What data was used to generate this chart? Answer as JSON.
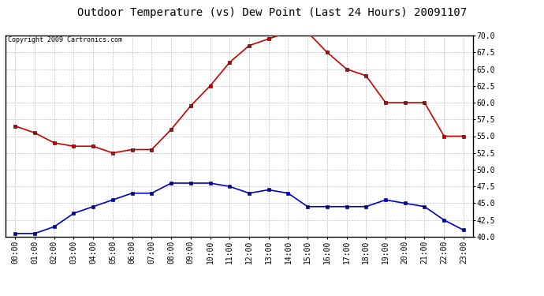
{
  "title": "Outdoor Temperature (vs) Dew Point (Last 24 Hours) 20091107",
  "copyright": "Copyright 2009 Cartronics.com",
  "hours": [
    "00:00",
    "01:00",
    "02:00",
    "03:00",
    "04:00",
    "05:00",
    "06:00",
    "07:00",
    "08:00",
    "09:00",
    "10:00",
    "11:00",
    "12:00",
    "13:00",
    "14:00",
    "15:00",
    "16:00",
    "17:00",
    "18:00",
    "19:00",
    "20:00",
    "21:00",
    "22:00",
    "23:00"
  ],
  "temp": [
    56.5,
    55.5,
    54.0,
    53.5,
    53.5,
    52.5,
    53.0,
    53.0,
    56.0,
    59.5,
    62.5,
    66.0,
    68.5,
    69.5,
    70.5,
    70.5,
    67.5,
    65.0,
    64.0,
    60.0,
    60.0,
    60.0,
    55.0,
    55.0
  ],
  "dew": [
    40.5,
    40.5,
    41.5,
    43.5,
    44.5,
    45.5,
    46.5,
    46.5,
    48.0,
    48.0,
    48.0,
    47.5,
    46.5,
    47.0,
    46.5,
    44.5,
    44.5,
    44.5,
    44.5,
    45.5,
    45.0,
    44.5,
    42.5,
    41.0
  ],
  "temp_color": "#cc0000",
  "dew_color": "#0000cc",
  "ylim_min": 40.0,
  "ylim_max": 70.0,
  "ytick_step": 2.5,
  "background_color": "#ffffff",
  "grid_color": "#c0c0c0",
  "title_fontsize": 10,
  "copyright_fontsize": 6,
  "tick_fontsize": 7,
  "line_width": 1.2,
  "marker": "s",
  "marker_size": 3
}
